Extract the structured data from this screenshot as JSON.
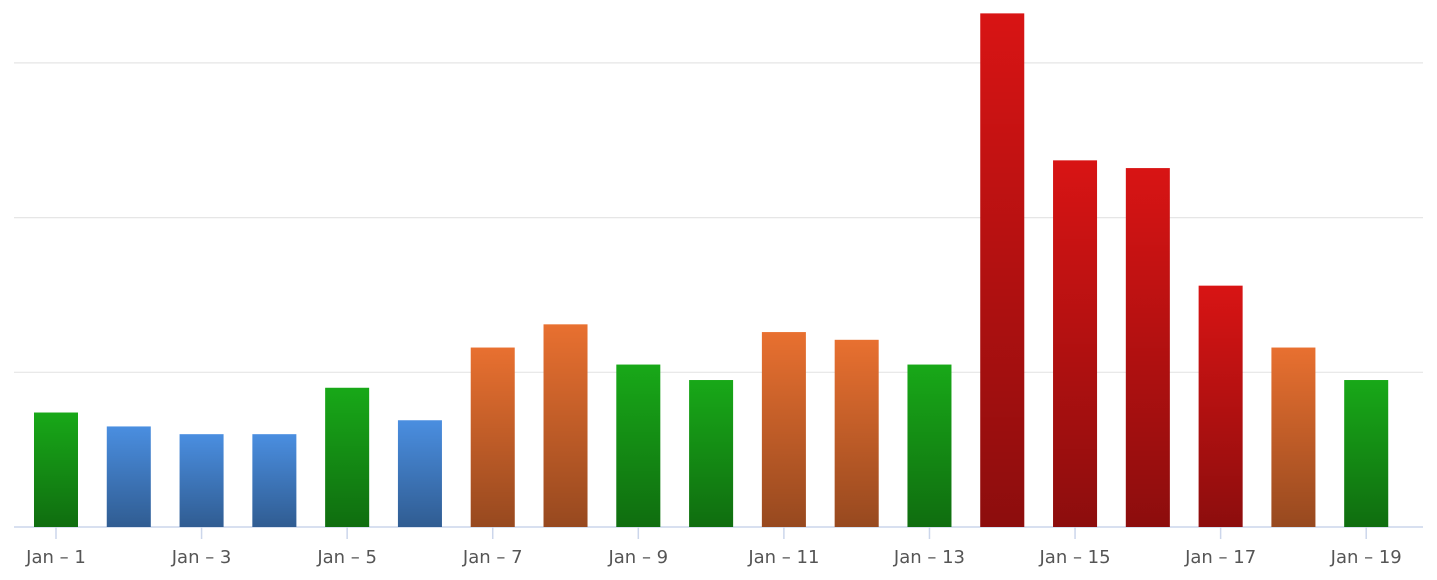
{
  "chart_data": {
    "type": "bar",
    "categories": [
      "Jan – 1",
      null,
      "Jan – 3",
      null,
      "Jan – 5",
      null,
      "Jan – 7",
      null,
      "Jan – 9",
      null,
      "Jan – 11",
      null,
      "Jan – 13",
      null,
      "Jan – 15",
      null,
      "Jan – 17",
      null,
      "Jan – 19"
    ],
    "values": [
      0.74,
      0.65,
      0.6,
      0.6,
      0.9,
      0.69,
      1.16,
      1.31,
      1.05,
      0.95,
      1.26,
      1.21,
      1.05,
      3.32,
      2.37,
      2.32,
      1.56,
      1.16,
      0.95
    ],
    "colors": [
      "#18a818",
      "#4a8ee0",
      "#4a8ee0",
      "#4a8ee0",
      "#18a818",
      "#4a8ee0",
      "#e87030",
      "#e87030",
      "#18a818",
      "#18a818",
      "#e87030",
      "#e87030",
      "#18a818",
      "#d81414",
      "#d81414",
      "#d81414",
      "#d81414",
      "#e87030",
      "#18a818"
    ],
    "ylim": [
      0,
      3.4
    ],
    "yticks": [
      0,
      1,
      2,
      3
    ],
    "grid": true
  }
}
